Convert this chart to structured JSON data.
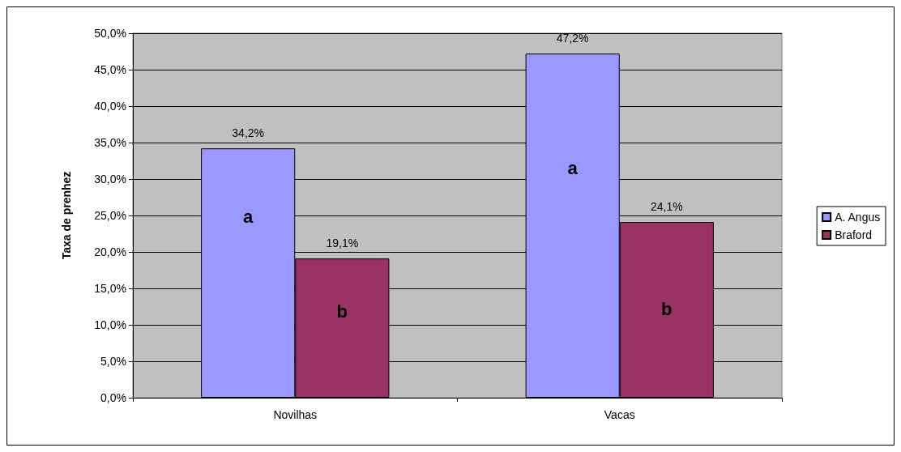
{
  "chart_data": {
    "type": "bar",
    "ylabel": "Taxa de prenhez",
    "categories": [
      "Novilhas",
      "Vacas"
    ],
    "series": [
      {
        "name": "A. Angus",
        "color": "#9999ff",
        "values": [
          34.2,
          47.2
        ],
        "value_labels": [
          "34,2%",
          "47,2%"
        ]
      },
      {
        "name": "Braford",
        "color": "#993366",
        "values": [
          19.1,
          24.1
        ],
        "value_labels": [
          "19,1%",
          "24,1%"
        ]
      }
    ],
    "ylim": [
      0,
      50
    ],
    "yticks": [
      {
        "value": 0,
        "label": "0,0%"
      },
      {
        "value": 5,
        "label": "5,0%"
      },
      {
        "value": 10,
        "label": "10,0%"
      },
      {
        "value": 15,
        "label": "15,0%"
      },
      {
        "value": 20,
        "label": "20,0%"
      },
      {
        "value": 25,
        "label": "25,0%"
      },
      {
        "value": 30,
        "label": "30,0%"
      },
      {
        "value": 35,
        "label": "35,0%"
      },
      {
        "value": 40,
        "label": "40,0%"
      },
      {
        "value": 45,
        "label": "45,0%"
      },
      {
        "value": 50,
        "label": "50,0%"
      }
    ],
    "annotations": [
      {
        "text": "a",
        "x": "Novilhas",
        "y": 24.8
      },
      {
        "text": "b",
        "x": "Novilhas",
        "y": 11.8
      },
      {
        "text": "a",
        "x": "Vacas",
        "y": 31.5
      },
      {
        "text": "b",
        "x": "Vacas",
        "y": 12.2
      }
    ],
    "grid": "y",
    "legend": "right"
  }
}
